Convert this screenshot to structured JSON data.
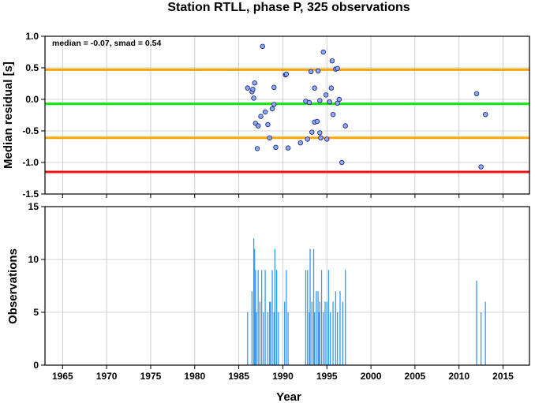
{
  "chart_data": [
    {
      "type": "scatter",
      "title": "Station RTLL, phase P, 325 observations",
      "annotation": "median = -0.07, smad = 0.54",
      "ylabel": "Median residual [s]",
      "xlim": [
        1963,
        2018
      ],
      "ylim": [
        -1.5,
        1.0
      ],
      "yticks": [
        "1.0",
        "0.5",
        "0.0",
        "-0.5",
        "-1.0",
        "-1.5"
      ],
      "ytick_values": [
        1.0,
        0.5,
        0.0,
        -0.5,
        -1.0,
        -1.5
      ],
      "grid": true,
      "reference_lines": [
        {
          "y": 0.47,
          "color": "#ffa500"
        },
        {
          "y": -0.07,
          "color": "#00ee00"
        },
        {
          "y": -0.61,
          "color": "#ffa500"
        },
        {
          "y": -1.15,
          "color": "#ee1111"
        }
      ],
      "marker_color": "#88aaff",
      "points": [
        {
          "x": 1986.0,
          "y": 0.18
        },
        {
          "x": 1986.5,
          "y": 0.12
        },
        {
          "x": 1986.6,
          "y": 0.16
        },
        {
          "x": 1986.7,
          "y": 0.02
        },
        {
          "x": 1986.8,
          "y": 0.26
        },
        {
          "x": 1986.9,
          "y": -0.38
        },
        {
          "x": 1987.1,
          "y": -0.78
        },
        {
          "x": 1987.2,
          "y": -0.42
        },
        {
          "x": 1987.5,
          "y": -0.27
        },
        {
          "x": 1987.7,
          "y": 0.84
        },
        {
          "x": 1988.0,
          "y": -0.2
        },
        {
          "x": 1988.3,
          "y": -0.4
        },
        {
          "x": 1988.5,
          "y": -0.61
        },
        {
          "x": 1988.8,
          "y": -0.15
        },
        {
          "x": 1989.0,
          "y": -0.08
        },
        {
          "x": 1989.2,
          "y": -0.76
        },
        {
          "x": 1989.0,
          "y": 0.19
        },
        {
          "x": 1990.3,
          "y": 0.39
        },
        {
          "x": 1990.4,
          "y": 0.4
        },
        {
          "x": 1990.6,
          "y": -0.77
        },
        {
          "x": 1992.0,
          "y": -0.69
        },
        {
          "x": 1992.6,
          "y": -0.03
        },
        {
          "x": 1992.8,
          "y": -0.63
        },
        {
          "x": 1993.0,
          "y": -0.05
        },
        {
          "x": 1993.2,
          "y": 0.44
        },
        {
          "x": 1993.3,
          "y": -0.52
        },
        {
          "x": 1993.6,
          "y": 0.18
        },
        {
          "x": 1993.6,
          "y": -0.36
        },
        {
          "x": 1993.9,
          "y": -0.35
        },
        {
          "x": 1994.0,
          "y": 0.45
        },
        {
          "x": 1994.2,
          "y": -0.02
        },
        {
          "x": 1994.2,
          "y": -0.53
        },
        {
          "x": 1994.3,
          "y": -0.61
        },
        {
          "x": 1994.6,
          "y": 0.75
        },
        {
          "x": 1994.9,
          "y": 0.07
        },
        {
          "x": 1995.0,
          "y": -0.63
        },
        {
          "x": 1995.3,
          "y": -0.04
        },
        {
          "x": 1995.5,
          "y": 0.18
        },
        {
          "x": 1995.6,
          "y": 0.61
        },
        {
          "x": 1995.7,
          "y": -0.24
        },
        {
          "x": 1996.0,
          "y": 0.48
        },
        {
          "x": 1996.2,
          "y": 0.49
        },
        {
          "x": 1996.2,
          "y": -0.06
        },
        {
          "x": 1996.4,
          "y": 0.0
        },
        {
          "x": 1996.7,
          "y": -1.0
        },
        {
          "x": 1997.1,
          "y": -0.42
        },
        {
          "x": 2012.0,
          "y": 0.09
        },
        {
          "x": 2012.5,
          "y": -1.07
        },
        {
          "x": 2013.0,
          "y": -0.24
        }
      ]
    },
    {
      "type": "bar",
      "xlabel": "Year",
      "ylabel": "Observations",
      "xlim": [
        1963,
        2018
      ],
      "ylim": [
        0,
        15
      ],
      "yticks": [
        "0",
        "5",
        "10",
        "15"
      ],
      "ytick_values": [
        0,
        5,
        10,
        15
      ],
      "xticks": [
        "1965",
        "1970",
        "1975",
        "1980",
        "1985",
        "1990",
        "1995",
        "2000",
        "2005",
        "2010",
        "2015"
      ],
      "xtick_values": [
        1965,
        1970,
        1975,
        1980,
        1985,
        1990,
        1995,
        2000,
        2005,
        2010,
        2015
      ],
      "grid": true,
      "bar_color": "#3399ff",
      "bars": [
        {
          "x": 1986.0,
          "y": 5
        },
        {
          "x": 1986.5,
          "y": 7
        },
        {
          "x": 1986.7,
          "y": 12
        },
        {
          "x": 1986.8,
          "y": 11
        },
        {
          "x": 1986.9,
          "y": 9
        },
        {
          "x": 1987.0,
          "y": 5
        },
        {
          "x": 1987.2,
          "y": 9
        },
        {
          "x": 1987.4,
          "y": 6
        },
        {
          "x": 1987.6,
          "y": 9
        },
        {
          "x": 1987.8,
          "y": 5
        },
        {
          "x": 1988.0,
          "y": 9
        },
        {
          "x": 1988.3,
          "y": 5
        },
        {
          "x": 1988.5,
          "y": 6
        },
        {
          "x": 1988.6,
          "y": 6
        },
        {
          "x": 1988.8,
          "y": 9
        },
        {
          "x": 1989.0,
          "y": 5
        },
        {
          "x": 1989.1,
          "y": 11
        },
        {
          "x": 1989.3,
          "y": 9
        },
        {
          "x": 1989.5,
          "y": 5
        },
        {
          "x": 1990.2,
          "y": 6
        },
        {
          "x": 1990.4,
          "y": 9
        },
        {
          "x": 1990.6,
          "y": 5
        },
        {
          "x": 1992.6,
          "y": 9
        },
        {
          "x": 1992.8,
          "y": 9
        },
        {
          "x": 1993.0,
          "y": 5
        },
        {
          "x": 1993.1,
          "y": 11
        },
        {
          "x": 1993.3,
          "y": 6
        },
        {
          "x": 1993.5,
          "y": 11
        },
        {
          "x": 1993.6,
          "y": 5
        },
        {
          "x": 1993.8,
          "y": 7
        },
        {
          "x": 1994.0,
          "y": 7
        },
        {
          "x": 1994.1,
          "y": 5
        },
        {
          "x": 1994.2,
          "y": 6
        },
        {
          "x": 1994.4,
          "y": 9
        },
        {
          "x": 1994.6,
          "y": 5
        },
        {
          "x": 1994.8,
          "y": 6
        },
        {
          "x": 1995.0,
          "y": 6
        },
        {
          "x": 1995.2,
          "y": 9
        },
        {
          "x": 1995.4,
          "y": 5
        },
        {
          "x": 1995.7,
          "y": 6
        },
        {
          "x": 1996.0,
          "y": 7
        },
        {
          "x": 1996.2,
          "y": 5
        },
        {
          "x": 1996.5,
          "y": 7
        },
        {
          "x": 1996.8,
          "y": 6
        },
        {
          "x": 1997.1,
          "y": 9
        },
        {
          "x": 2012.0,
          "y": 8
        },
        {
          "x": 2012.5,
          "y": 5
        },
        {
          "x": 2013.0,
          "y": 6
        }
      ]
    }
  ]
}
